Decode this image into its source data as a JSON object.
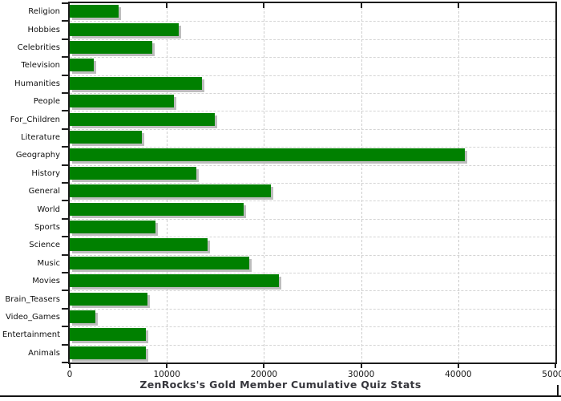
{
  "chart_data": {
    "type": "bar",
    "orientation": "horizontal",
    "title": "ZenRocks's Gold Member Cumulative Quiz Stats",
    "categories": [
      "Religion",
      "Hobbies",
      "Celebrities",
      "Television",
      "Humanities",
      "People",
      "For_Children",
      "Literature",
      "Geography",
      "History",
      "General",
      "World",
      "Sports",
      "Science",
      "Music",
      "Movies",
      "Brain_Teasers",
      "Video_Games",
      "Entertainment",
      "Animals"
    ],
    "values": [
      5000,
      11200,
      8500,
      2500,
      13600,
      10700,
      14900,
      7400,
      40700,
      13000,
      20700,
      17900,
      8800,
      14200,
      18500,
      21500,
      8000,
      2600,
      7800,
      7800
    ],
    "xlabel": "",
    "ylabel": "",
    "xlim": [
      0,
      50000
    ],
    "xticks": [
      0,
      10000,
      20000,
      30000,
      40000,
      50000
    ],
    "xtick_labels": [
      "0",
      "10000",
      "20000",
      "30000",
      "40000",
      "50000"
    ],
    "grid": "dashed-both",
    "legend_position": "none",
    "colors": {
      "bar": "#008000",
      "bar_shadow": "#bdbdbd",
      "grid": "#cdcdcd",
      "axis": "#1c1c1c",
      "title": "#36363c",
      "background": "#ffffff"
    }
  }
}
